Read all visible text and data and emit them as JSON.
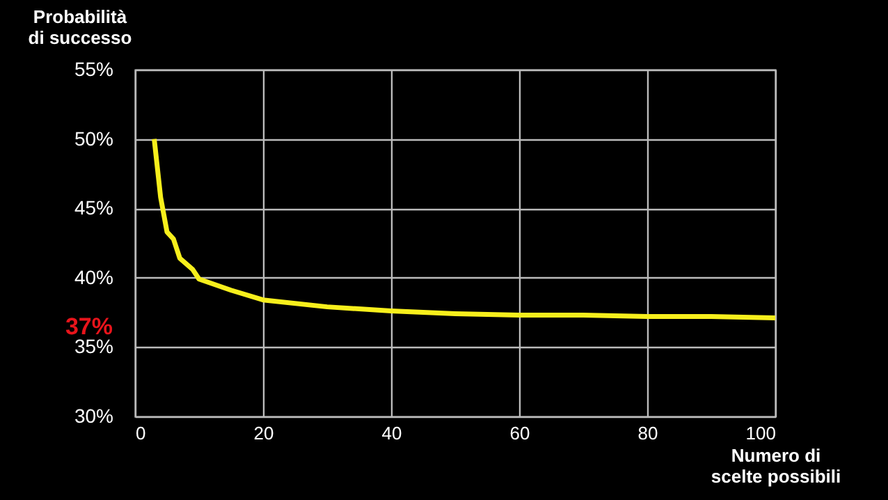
{
  "chart_data": {
    "type": "line",
    "xlabel": "Numero di scelte possibili",
    "ylabel": "Probabilità di successo",
    "x": [
      3,
      4,
      5,
      6,
      7,
      8,
      9,
      10,
      15,
      20,
      30,
      40,
      50,
      60,
      70,
      80,
      90,
      100
    ],
    "series": [
      {
        "color": "#f7ef1c",
        "values": [
          50,
          45.8,
          43.3,
          42.8,
          41.4,
          41,
          40.6,
          39.9,
          39.1,
          38.4,
          37.9,
          37.6,
          37.4,
          37.3,
          37.3,
          37.2,
          37.2,
          37.1
        ]
      }
    ],
    "xlim": [
      0,
      100
    ],
    "xticks": [
      0,
      20,
      40,
      60,
      80,
      100
    ],
    "ylim": [
      30,
      55
    ],
    "yticks": [
      {
        "value": 30,
        "label": "30%"
      },
      {
        "value": 35,
        "label": "35%"
      },
      {
        "value": 40,
        "label": "40%"
      },
      {
        "value": 45,
        "label": "45%"
      },
      {
        "value": 50,
        "label": "50%"
      },
      {
        "value": 55,
        "label": "55%"
      }
    ],
    "annotations": [
      "37%"
    ],
    "grid": true,
    "marker": "none",
    "line_style": "solid"
  }
}
